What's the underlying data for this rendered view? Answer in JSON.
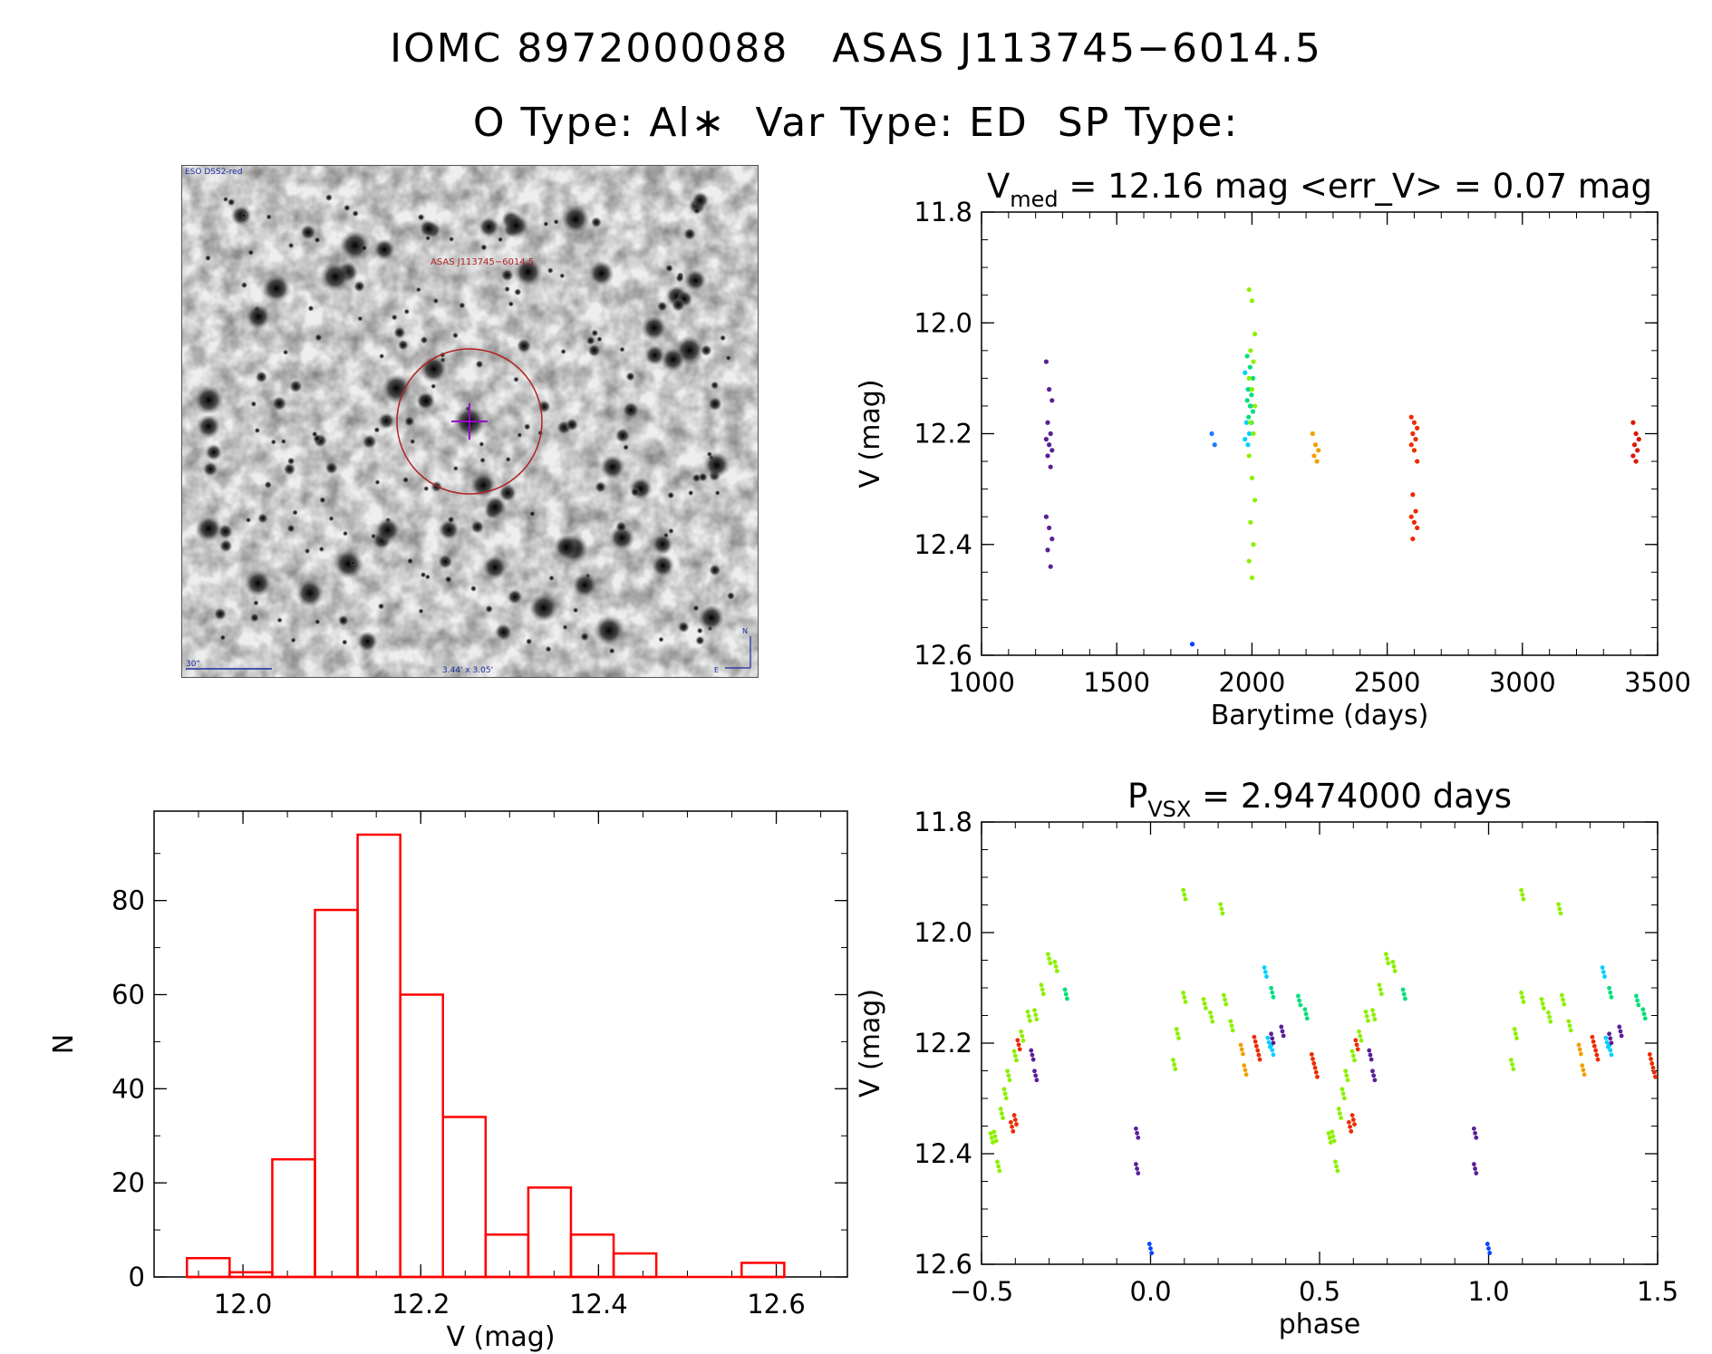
{
  "header": {
    "line1": "IOMC 8972000088   ASAS J113745−6014.5",
    "line2": "O Type: Al∗  Var Type: ED  SP Type:"
  },
  "finder_chart": {
    "survey_label": "ESO DSS2-red",
    "object_label": "ASAS J113745−6014.5",
    "scale_label": "30\"",
    "size_label": "3.44' x 3.05'",
    "compass_n": "N",
    "compass_e": "E"
  },
  "colors": {
    "histogram": "#ff0000",
    "axis": "#000000",
    "circle": "#b22222",
    "crosshair": "#9900cc"
  },
  "chart_data": [
    {
      "id": "light_curve",
      "type": "scatter",
      "title_main": "V",
      "title_sub": "med",
      "title_rest": " = 12.16 mag <err_V> = 0.07 mag",
      "xlabel": "Barytime (days)",
      "ylabel": "V (mag)",
      "xlim": [
        1000,
        3500
      ],
      "ylim": [
        12.6,
        11.8
      ],
      "xticks": [
        1000,
        1500,
        2000,
        2500,
        3000,
        3500
      ],
      "yticks": [
        11.8,
        12.0,
        12.2,
        12.4,
        12.6
      ],
      "series": [
        {
          "name": "season1",
          "color": "#5a1e96",
          "x": 1250,
          "values": [
            12.07,
            12.12,
            12.14,
            12.18,
            12.2,
            12.21,
            12.22,
            12.23,
            12.24,
            12.26,
            12.35,
            12.37,
            12.39,
            12.41,
            12.44
          ]
        },
        {
          "name": "early",
          "color": "#0044ff",
          "x": 1790,
          "values": [
            12.58
          ]
        },
        {
          "name": "season2",
          "color": "#1e78ff",
          "x": 1862,
          "values": [
            12.2,
            12.22
          ]
        },
        {
          "name": "season3a",
          "color": "#00d0ff",
          "x": 1985,
          "values": [
            12.09,
            12.12,
            12.15,
            12.18,
            12.2,
            12.21,
            12.22
          ]
        },
        {
          "name": "season3b",
          "color": "#00e07a",
          "x": 1993,
          "values": [
            12.06,
            12.08,
            12.1,
            12.12,
            12.13,
            12.14,
            12.15,
            12.16,
            12.17,
            12.18
          ]
        },
        {
          "name": "season3c",
          "color": "#8cf000",
          "x": 2000,
          "values": [
            11.94,
            11.96,
            12.02,
            12.05,
            12.07,
            12.1,
            12.12,
            12.15,
            12.18,
            12.2,
            12.24,
            12.28,
            12.32,
            12.36,
            12.4,
            12.43,
            12.46
          ]
        },
        {
          "name": "season4",
          "color": "#f0a000",
          "x": 2235,
          "values": [
            12.2,
            12.22,
            12.23,
            12.24,
            12.25
          ]
        },
        {
          "name": "season5",
          "color": "#ee2a00",
          "x": 2600,
          "values": [
            12.17,
            12.18,
            12.19,
            12.2,
            12.21,
            12.22,
            12.23,
            12.25,
            12.31,
            12.34,
            12.35,
            12.36,
            12.37,
            12.39
          ]
        },
        {
          "name": "season6",
          "color": "#dd1500",
          "x": 3420,
          "values": [
            12.18,
            12.2,
            12.21,
            12.22,
            12.23,
            12.24,
            12.25
          ]
        }
      ]
    },
    {
      "id": "histogram",
      "type": "bar",
      "xlabel": "V (mag)",
      "ylabel": "N",
      "xlim": [
        11.9,
        12.68
      ],
      "ylim": [
        0,
        99
      ],
      "xticks": [
        12.0,
        12.2,
        12.4,
        12.6
      ],
      "yticks": [
        0,
        20,
        40,
        60,
        80
      ],
      "bin_edges": [
        11.937,
        11.985,
        12.033,
        12.081,
        12.129,
        12.177,
        12.225,
        12.273,
        12.321,
        12.369,
        12.417,
        12.465,
        12.513,
        12.561,
        12.609
      ],
      "values": [
        4,
        1,
        25,
        78,
        94,
        60,
        34,
        9,
        19,
        9,
        5,
        0,
        0,
        3
      ]
    },
    {
      "id": "phase_curve",
      "type": "scatter",
      "title_main": "P",
      "title_sub": "VSX",
      "title_rest": " = 2.9474000 days",
      "xlabel": "phase",
      "ylabel": "V (mag)",
      "xlim": [
        -0.5,
        1.5
      ],
      "ylim": [
        12.6,
        11.8
      ],
      "xticks": [
        -0.5,
        0.0,
        0.5,
        1.0,
        1.5
      ],
      "yticks": [
        11.8,
        12.0,
        12.2,
        12.4,
        12.6
      ],
      "series": [
        {
          "name": "green",
          "color": "#8cf000",
          "points": [
            [
              -0.47,
              12.38
            ],
            [
              -0.46,
              12.36
            ],
            [
              -0.45,
              12.42
            ],
            [
              -0.44,
              12.33
            ],
            [
              -0.43,
              12.3
            ],
            [
              -0.42,
              12.25
            ],
            [
              -0.4,
              12.22
            ],
            [
              -0.38,
              12.19
            ],
            [
              -0.36,
              12.16
            ],
            [
              -0.34,
              12.14
            ],
            [
              -0.32,
              12.1
            ],
            [
              -0.3,
              12.05
            ],
            [
              -0.28,
              12.07
            ],
            [
              0.07,
              12.23
            ],
            [
              0.08,
              12.18
            ],
            [
              0.1,
              12.12
            ],
            [
              0.1,
              11.94
            ],
            [
              0.16,
              12.12
            ],
            [
              0.18,
              12.15
            ],
            [
              0.21,
              11.96
            ],
            [
              0.22,
              12.13
            ],
            [
              0.24,
              12.16
            ]
          ]
        },
        {
          "name": "teal",
          "color": "#00e07a",
          "points": [
            [
              -0.25,
              12.12
            ],
            [
              0.36,
              12.1
            ],
            [
              0.44,
              12.12
            ],
            [
              0.46,
              12.15
            ]
          ]
        },
        {
          "name": "cyan",
          "color": "#00d0ff",
          "points": [
            [
              0.34,
              12.08
            ],
            [
              0.35,
              12.19
            ],
            [
              0.36,
              12.21
            ]
          ]
        },
        {
          "name": "orange",
          "color": "#f0a000",
          "points": [
            [
              0.27,
              12.22
            ],
            [
              0.28,
              12.24
            ]
          ]
        },
        {
          "name": "red",
          "color": "#ee2a00",
          "points": [
            [
              -0.41,
              12.36
            ],
            [
              -0.4,
              12.33
            ],
            [
              -0.39,
              12.2
            ],
            [
              0.31,
              12.2
            ],
            [
              0.32,
              12.23
            ],
            [
              0.48,
              12.22
            ],
            [
              0.49,
              12.25
            ]
          ]
        },
        {
          "name": "purple",
          "color": "#5a1e96",
          "points": [
            [
              -0.35,
              12.23
            ],
            [
              -0.34,
              12.25
            ],
            [
              -0.04,
              12.36
            ],
            [
              -0.04,
              12.43
            ],
            [
              0.36,
              12.2
            ],
            [
              0.39,
              12.17
            ]
          ]
        },
        {
          "name": "blue",
          "color": "#0044ff",
          "points": [
            [
              0.0,
              12.58
            ]
          ]
        }
      ]
    }
  ]
}
